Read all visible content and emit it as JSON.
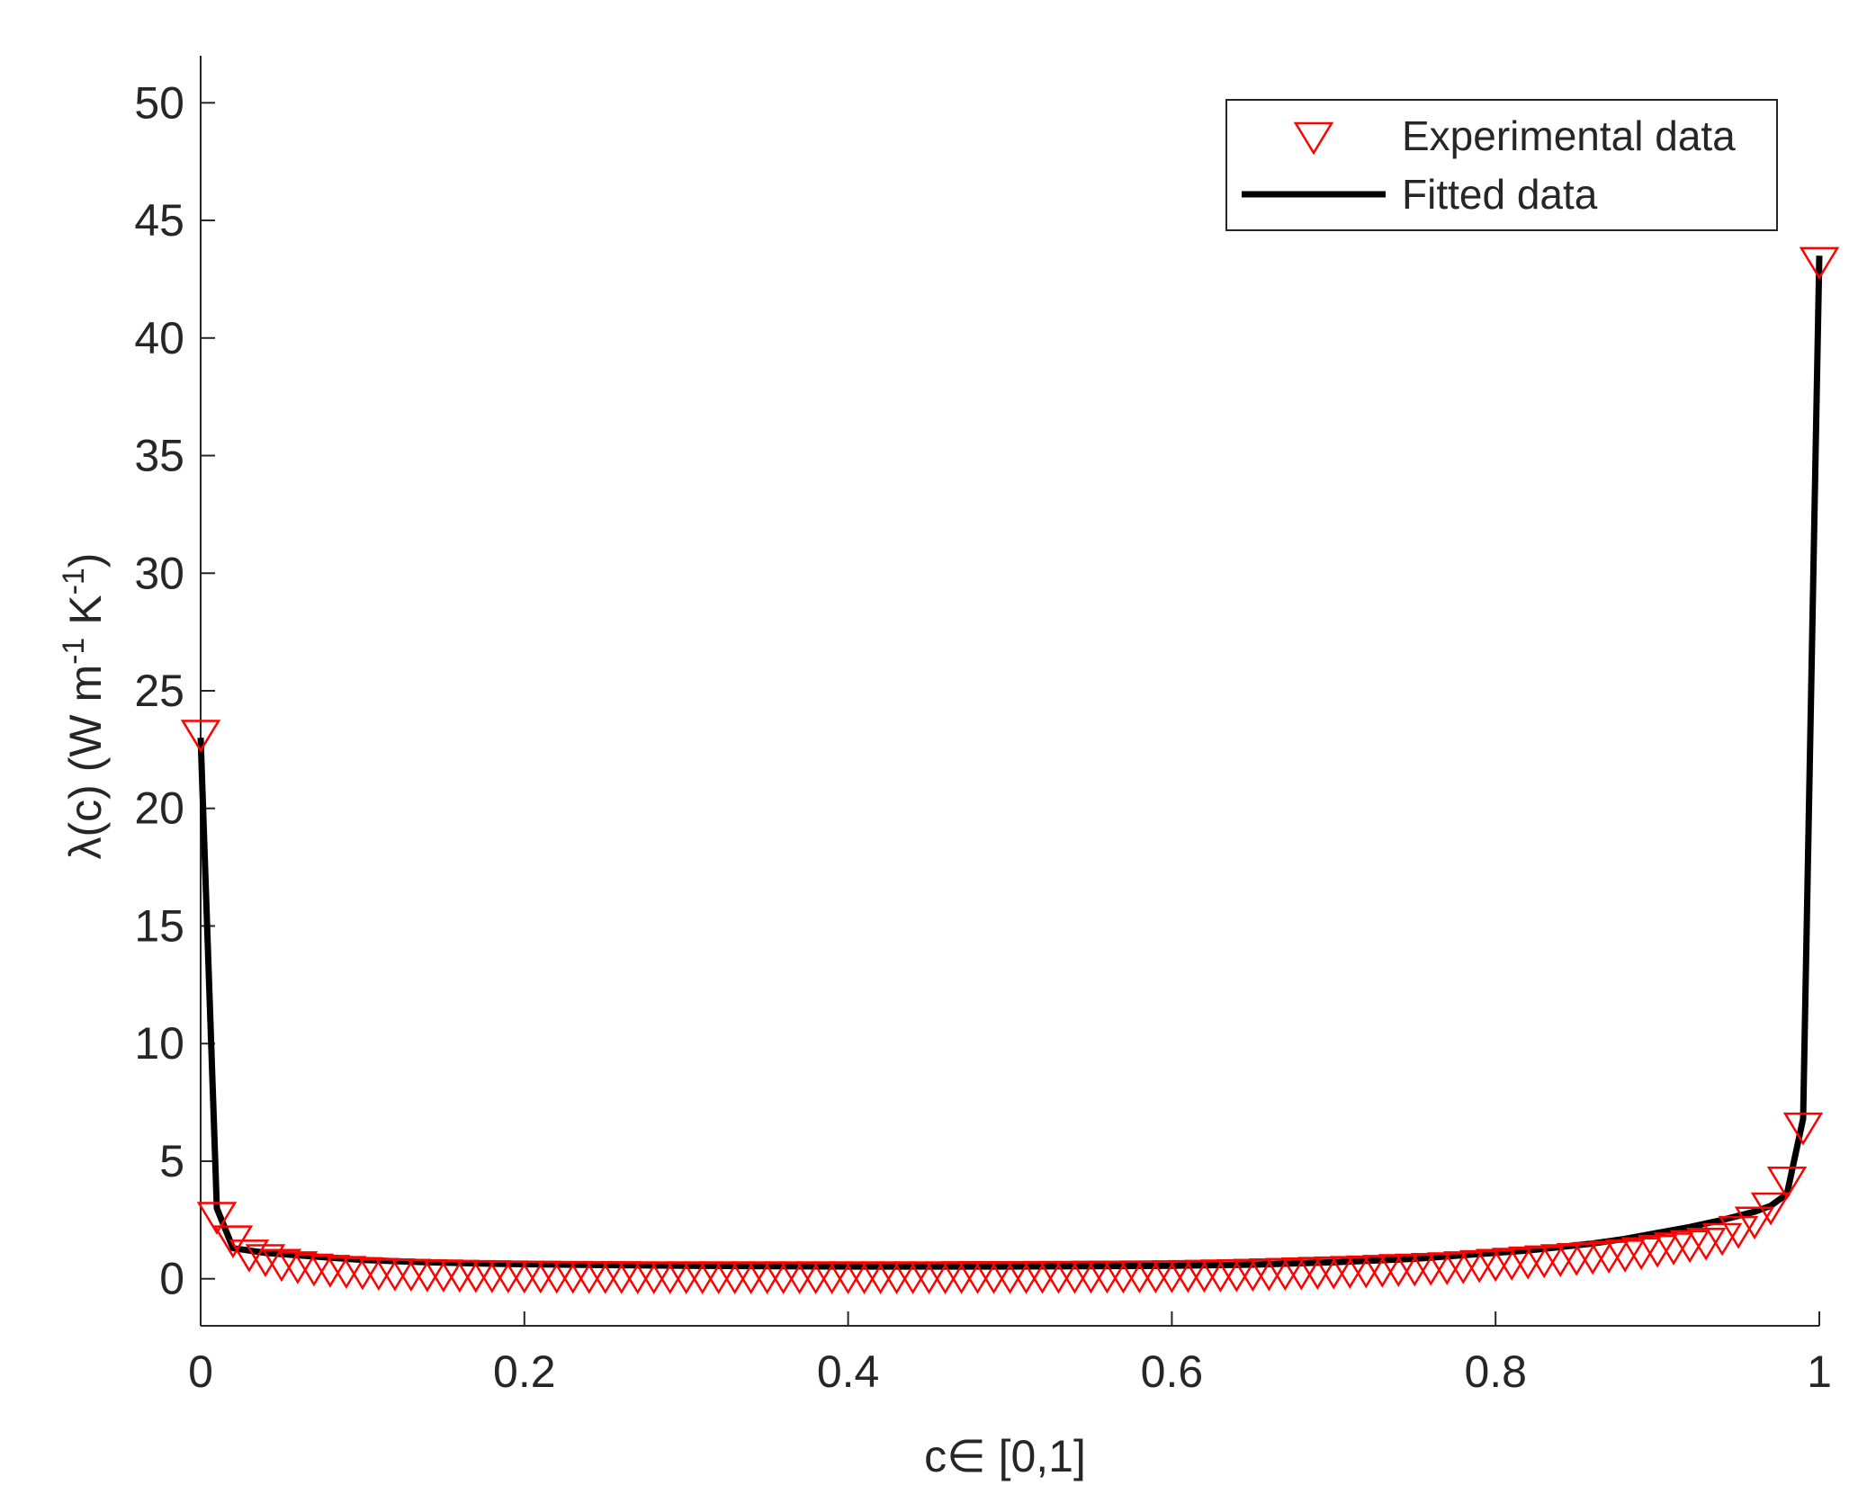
{
  "chart_data": {
    "type": "scatter",
    "xlabel": "c∈ [0,1]",
    "ylabel": "λ(c) (W m-1 K-1)",
    "ylabel_parts": [
      {
        "text": "λ(c) (W m",
        "sup": false
      },
      {
        "text": "-1",
        "sup": true
      },
      {
        "text": " K",
        "sup": false
      },
      {
        "text": "-1",
        "sup": true
      },
      {
        "text": ")",
        "sup": false
      }
    ],
    "xlim": [
      0,
      1
    ],
    "ylim": [
      -2,
      52
    ],
    "xticks": [
      0,
      0.2,
      0.4,
      0.6,
      0.8,
      1
    ],
    "xtick_labels": [
      "0",
      "0.2",
      "0.4",
      "0.6",
      "0.8",
      "1"
    ],
    "yticks": [
      0,
      5,
      10,
      15,
      20,
      25,
      30,
      35,
      40,
      45,
      50
    ],
    "ytick_labels": [
      "0",
      "5",
      "10",
      "15",
      "20",
      "25",
      "30",
      "35",
      "40",
      "45",
      "50"
    ],
    "grid": false,
    "legend": {
      "position": "top-right",
      "entries": [
        {
          "label": "Experimental data",
          "marker": "triangle-down",
          "color": "#ff0000"
        },
        {
          "label": "Fitted data",
          "marker": "line",
          "color": "#000000"
        }
      ]
    },
    "series": [
      {
        "name": "Experimental data",
        "kind": "markers",
        "color": "#ff0000",
        "x": [
          0,
          0.01,
          0.02,
          0.03,
          0.04,
          0.05,
          0.06,
          0.07,
          0.08,
          0.09,
          0.1,
          0.11,
          0.12,
          0.13,
          0.14,
          0.15,
          0.16,
          0.17,
          0.18,
          0.19,
          0.2,
          0.21,
          0.22,
          0.23,
          0.24,
          0.25,
          0.26,
          0.27,
          0.28,
          0.29,
          0.3,
          0.31,
          0.32,
          0.33,
          0.34,
          0.35,
          0.36,
          0.37,
          0.38,
          0.39,
          0.4,
          0.41,
          0.42,
          0.43,
          0.44,
          0.45,
          0.46,
          0.47,
          0.48,
          0.49,
          0.5,
          0.51,
          0.52,
          0.53,
          0.54,
          0.55,
          0.56,
          0.57,
          0.58,
          0.59,
          0.6,
          0.61,
          0.62,
          0.63,
          0.64,
          0.65,
          0.66,
          0.67,
          0.68,
          0.69,
          0.7,
          0.71,
          0.72,
          0.73,
          0.74,
          0.75,
          0.76,
          0.77,
          0.78,
          0.79,
          0.8,
          0.81,
          0.82,
          0.83,
          0.84,
          0.85,
          0.86,
          0.87,
          0.88,
          0.89,
          0.9,
          0.91,
          0.92,
          0.93,
          0.94,
          0.95,
          0.96,
          0.97,
          0.98,
          0.99,
          1
        ],
        "y": [
          23.3,
          2.8,
          1.8,
          1.2,
          1.0,
          0.8,
          0.7,
          0.6,
          0.55,
          0.5,
          0.45,
          0.42,
          0.4,
          0.38,
          0.36,
          0.35,
          0.34,
          0.33,
          0.32,
          0.31,
          0.3,
          0.3,
          0.29,
          0.29,
          0.28,
          0.28,
          0.28,
          0.27,
          0.27,
          0.27,
          0.27,
          0.27,
          0.27,
          0.27,
          0.27,
          0.27,
          0.27,
          0.27,
          0.27,
          0.27,
          0.27,
          0.27,
          0.27,
          0.27,
          0.27,
          0.27,
          0.27,
          0.28,
          0.28,
          0.28,
          0.28,
          0.28,
          0.29,
          0.29,
          0.29,
          0.3,
          0.3,
          0.3,
          0.31,
          0.31,
          0.32,
          0.33,
          0.34,
          0.35,
          0.36,
          0.38,
          0.4,
          0.42,
          0.44,
          0.46,
          0.48,
          0.5,
          0.52,
          0.55,
          0.58,
          0.6,
          0.63,
          0.66,
          0.7,
          0.75,
          0.8,
          0.85,
          0.9,
          0.95,
          1.0,
          1.05,
          1.1,
          1.15,
          1.2,
          1.3,
          1.4,
          1.5,
          1.6,
          1.7,
          1.9,
          2.2,
          2.6,
          3.2,
          4.3,
          6.6,
          43.4
        ]
      },
      {
        "name": "Fitted data",
        "kind": "line",
        "color": "#000000",
        "x": [
          0,
          0.01,
          0.02,
          0.03,
          0.04,
          0.05,
          0.06,
          0.07,
          0.08,
          0.09,
          0.1,
          0.12,
          0.14,
          0.16,
          0.18,
          0.2,
          0.25,
          0.3,
          0.35,
          0.4,
          0.45,
          0.5,
          0.55,
          0.6,
          0.65,
          0.7,
          0.75,
          0.8,
          0.82,
          0.84,
          0.86,
          0.88,
          0.9,
          0.92,
          0.94,
          0.96,
          0.97,
          0.98,
          0.99,
          1
        ],
        "y": [
          23.0,
          3.0,
          1.3,
          1.2,
          1.1,
          1.05,
          1.0,
          0.95,
          0.9,
          0.85,
          0.8,
          0.75,
          0.7,
          0.67,
          0.64,
          0.62,
          0.58,
          0.55,
          0.53,
          0.52,
          0.52,
          0.52,
          0.53,
          0.55,
          0.6,
          0.7,
          0.85,
          1.1,
          1.2,
          1.35,
          1.5,
          1.7,
          1.95,
          2.2,
          2.5,
          2.85,
          3.1,
          3.6,
          6.8,
          43.5
        ]
      }
    ]
  }
}
